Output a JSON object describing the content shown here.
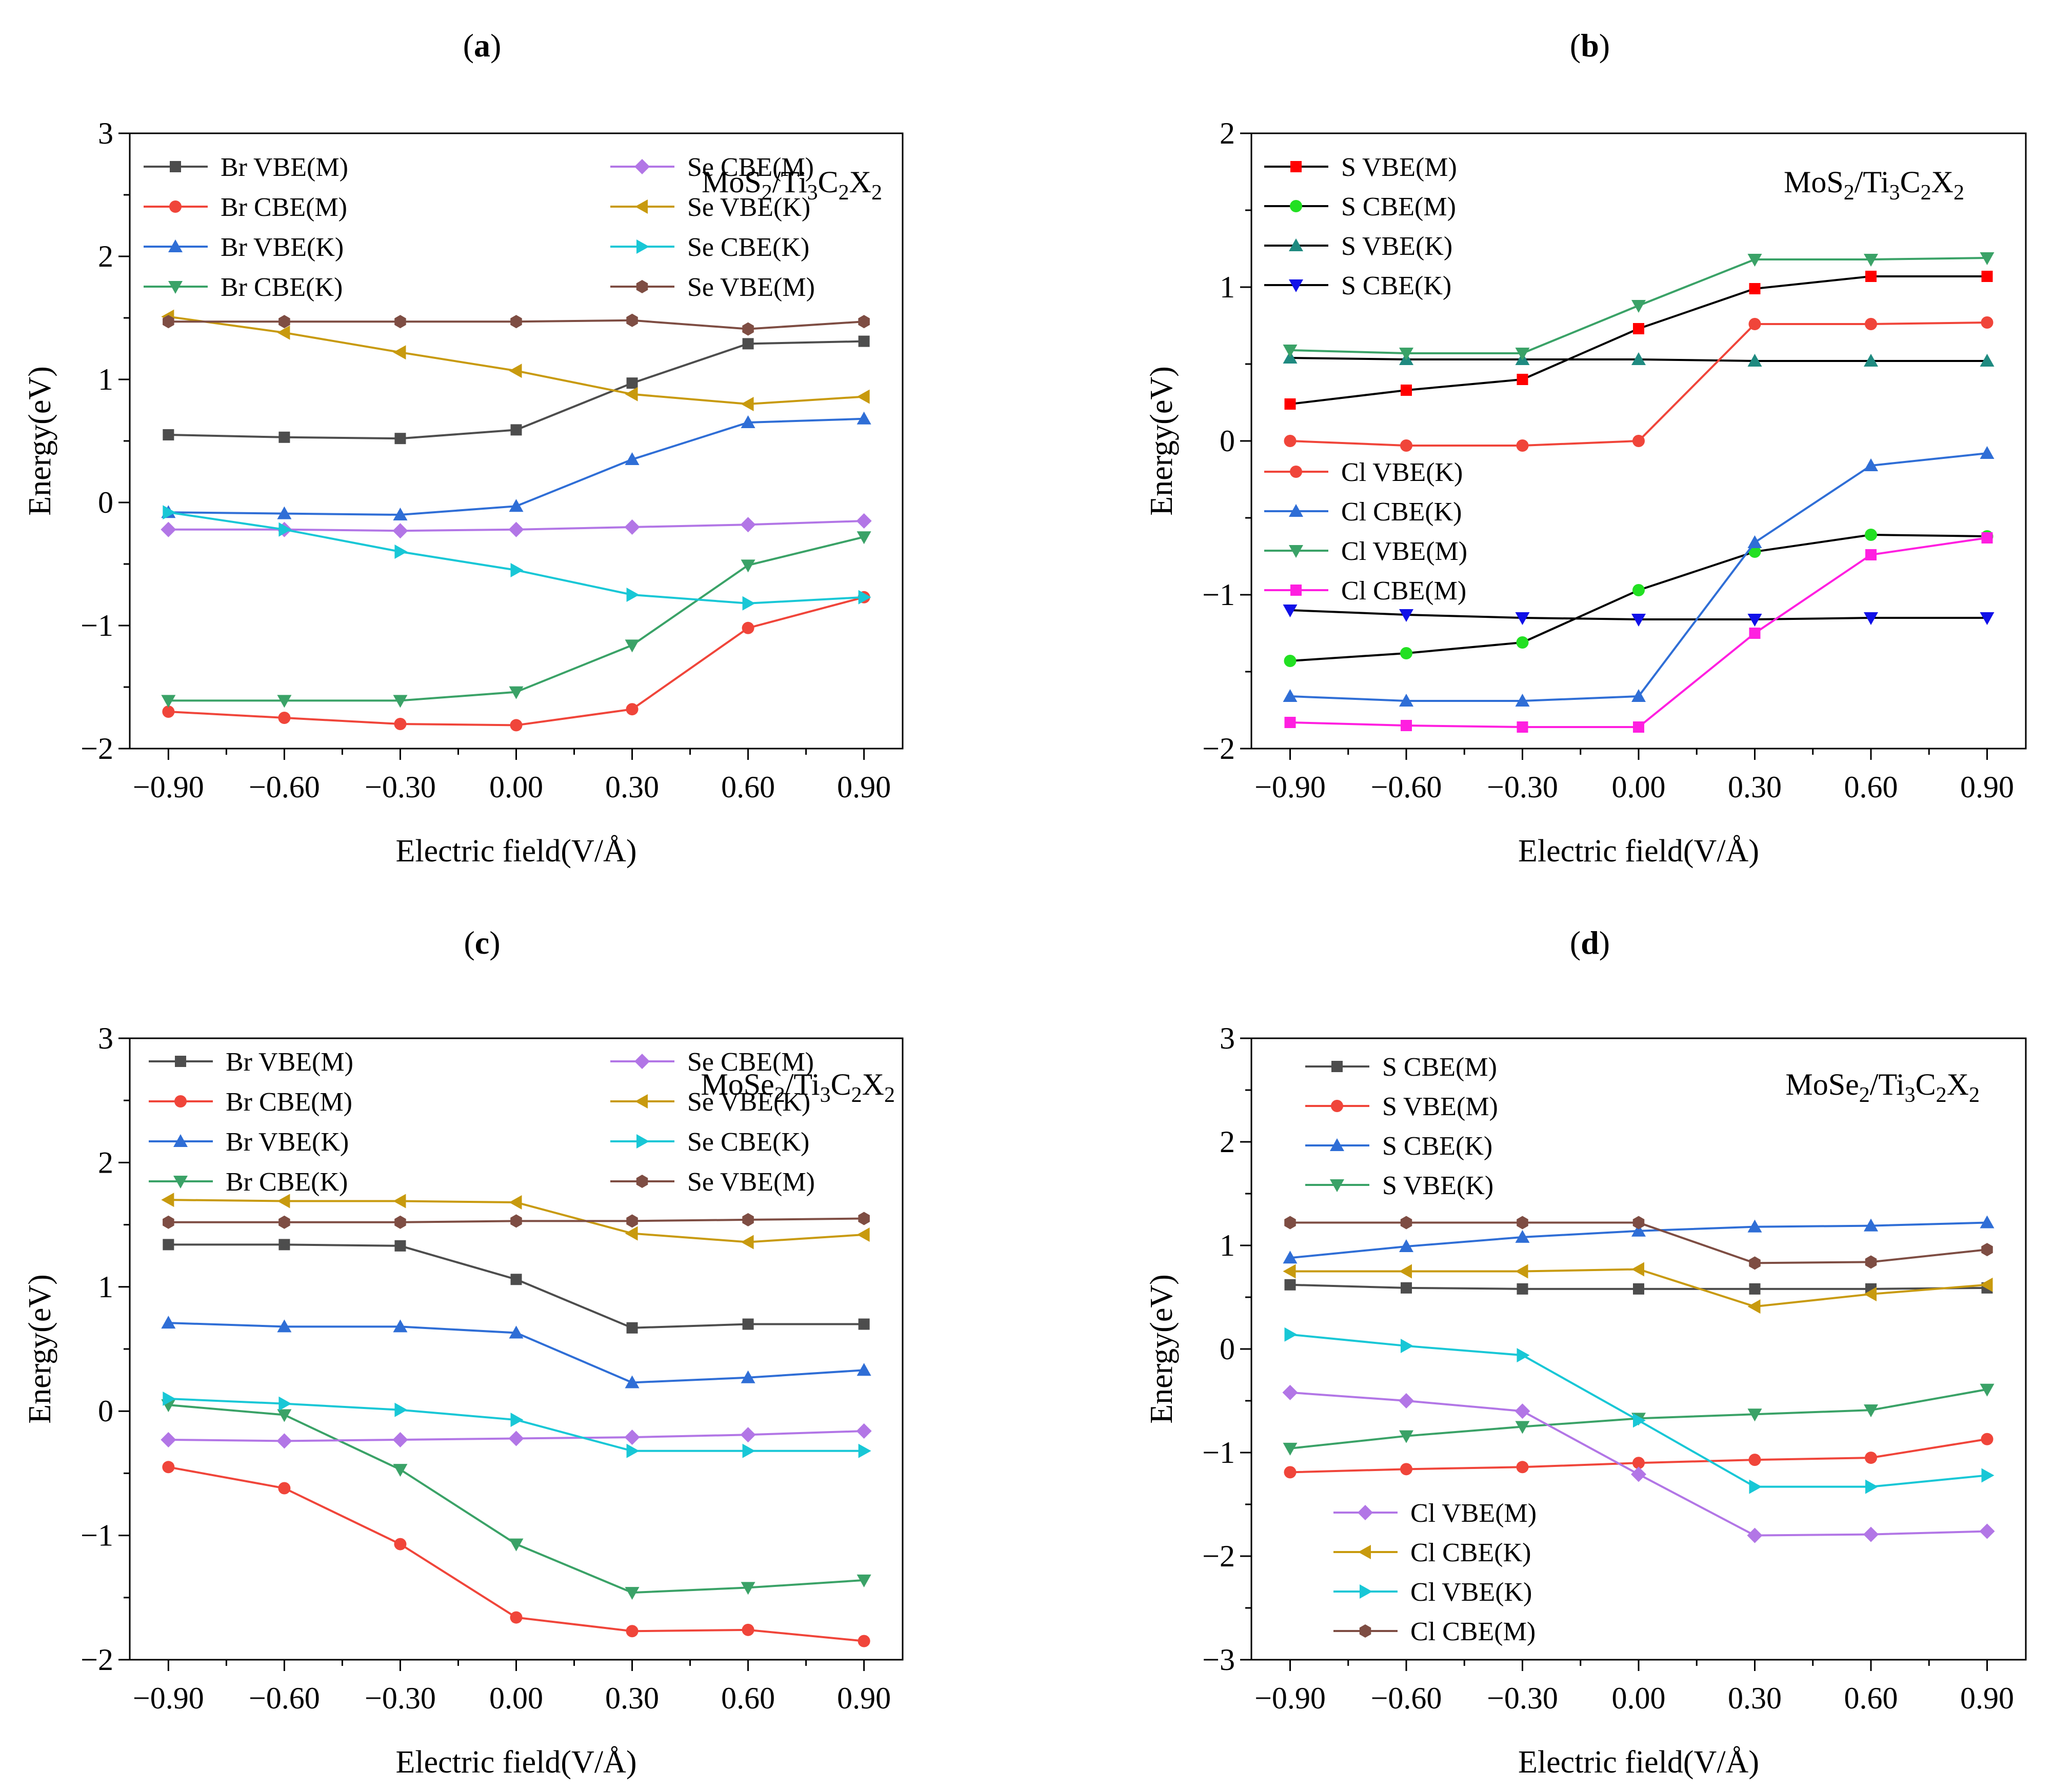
{
  "figure": {
    "panels": [
      {
        "label": "a",
        "title_open": "(",
        "title_close": ")"
      },
      {
        "label": "b",
        "title_open": "(",
        "title_close": ")"
      },
      {
        "label": "c",
        "title_open": "(",
        "title_close": ")"
      },
      {
        "label": "d",
        "title_open": "(",
        "title_close": ")"
      }
    ]
  },
  "chart_data": [
    {
      "type": "line",
      "panel": "a",
      "title": "(a)",
      "annotation": {
        "parts": [
          "MoS",
          "2",
          "/Ti",
          "3",
          "C",
          "2",
          "X",
          "2"
        ]
      },
      "xlabel": "Electric field(V/Å)",
      "ylabel": "Energy(eV)",
      "x": [
        -0.9,
        -0.6,
        -0.3,
        0.0,
        0.3,
        0.6,
        0.9
      ],
      "xtick_labels": [
        "−0.90",
        "−0.60",
        "−0.30",
        "0.00",
        "0.30",
        "0.60",
        "0.90"
      ],
      "ylim": [
        -2,
        3
      ],
      "yticks": [
        -2,
        -1,
        0,
        1,
        2,
        3
      ],
      "ytick_labels": [
        "−2",
        "−1",
        "0",
        "1",
        "2",
        "3"
      ],
      "legend": {
        "position": "top-left",
        "columns": 2
      },
      "series": [
        {
          "name": "Br VBE(M)",
          "color": "#4d4d4d",
          "marker": "square",
          "values": [
            0.55,
            0.53,
            0.52,
            0.59,
            0.97,
            1.29,
            1.31
          ]
        },
        {
          "name": "Br CBE(M)",
          "color": "#f0453a",
          "marker": "circle",
          "values": [
            -1.7,
            -1.75,
            -1.8,
            -1.81,
            -1.68,
            -1.02,
            -0.77
          ]
        },
        {
          "name": "Br VBE(K)",
          "color": "#2f6ed6",
          "marker": "triangle-up",
          "values": [
            -0.08,
            -0.09,
            -0.1,
            -0.03,
            0.35,
            0.65,
            0.68
          ]
        },
        {
          "name": "Br CBE(K)",
          "color": "#3aa267",
          "marker": "triangle-down",
          "values": [
            -1.61,
            -1.61,
            -1.61,
            -1.54,
            -1.16,
            -0.51,
            -0.28
          ]
        },
        {
          "name": "Se CBE(M)",
          "color": "#b276e6",
          "marker": "diamond",
          "values": [
            -0.22,
            -0.22,
            -0.23,
            -0.22,
            -0.2,
            -0.18,
            -0.15
          ]
        },
        {
          "name": "Se VBE(K)",
          "color": "#c89a0e",
          "marker": "triangle-left",
          "values": [
            1.51,
            1.38,
            1.22,
            1.07,
            0.88,
            0.8,
            0.86
          ]
        },
        {
          "name": "Se CBE(K)",
          "color": "#18c7d6",
          "marker": "triangle-right",
          "values": [
            -0.08,
            -0.22,
            -0.4,
            -0.55,
            -0.75,
            -0.82,
            -0.77
          ]
        },
        {
          "name": "Se VBE(M)",
          "color": "#7e4d43",
          "marker": "hexagon",
          "values": [
            1.47,
            1.47,
            1.47,
            1.47,
            1.48,
            1.41,
            1.47
          ]
        }
      ]
    },
    {
      "type": "line",
      "panel": "b",
      "title": "(b)",
      "annotation": {
        "parts": [
          "MoS",
          "2",
          "/Ti",
          "3",
          "C",
          "2",
          "X",
          "2"
        ]
      },
      "xlabel": "Electric field(V/Å)",
      "ylabel": "Energy(eV)",
      "x": [
        -0.9,
        -0.6,
        -0.3,
        0.0,
        0.3,
        0.6,
        0.9
      ],
      "xtick_labels": [
        "−0.90",
        "−0.60",
        "−0.30",
        "0.00",
        "0.30",
        "0.60",
        "0.90"
      ],
      "ylim": [
        -2,
        2
      ],
      "yticks": [
        -2,
        -1,
        0,
        1,
        2
      ],
      "ytick_labels": [
        "−2",
        "−1",
        "0",
        "1",
        "2"
      ],
      "legend": {
        "position": "top-left and middle-left",
        "columns": 1
      },
      "series": [
        {
          "name": "S VBE(M)",
          "color": "#000000",
          "marker": "square",
          "marker_color": "#ff0000",
          "values": [
            0.24,
            0.33,
            0.4,
            0.73,
            0.99,
            1.07,
            1.07
          ]
        },
        {
          "name": "S CBE(M)",
          "color": "#000000",
          "marker": "circle",
          "marker_color": "#22e022",
          "values": [
            -1.43,
            -1.38,
            -1.31,
            -0.97,
            -0.72,
            -0.61,
            -0.62
          ]
        },
        {
          "name": "S VBE(K)",
          "color": "#000000",
          "marker": "triangle-up",
          "marker_color": "#1f8a80",
          "values": [
            0.54,
            0.53,
            0.53,
            0.53,
            0.52,
            0.52,
            0.52
          ]
        },
        {
          "name": "S CBE(K)",
          "color": "#000000",
          "marker": "triangle-down",
          "marker_color": "#1010e8",
          "values": [
            -1.1,
            -1.13,
            -1.15,
            -1.16,
            -1.16,
            -1.15,
            -1.15
          ]
        },
        {
          "name": "Cl VBE(K)",
          "color": "#f0453a",
          "marker": "circle",
          "values": [
            0.0,
            -0.03,
            -0.03,
            0.0,
            0.76,
            0.76,
            0.77
          ]
        },
        {
          "name": "Cl CBE(K)",
          "color": "#2f6ed6",
          "marker": "triangle-up",
          "values": [
            -1.66,
            -1.69,
            -1.69,
            -1.66,
            -0.66,
            -0.16,
            -0.08
          ]
        },
        {
          "name": "Cl VBE(M)",
          "color": "#3aa267",
          "marker": "triangle-down",
          "values": [
            0.59,
            0.57,
            0.57,
            0.88,
            1.18,
            1.18,
            1.19
          ]
        },
        {
          "name": "Cl CBE(M)",
          "color": "#ff1fe0",
          "marker": "square",
          "values": [
            -1.83,
            -1.85,
            -1.86,
            -1.86,
            -1.25,
            -0.74,
            -0.63
          ]
        }
      ]
    },
    {
      "type": "line",
      "panel": "c",
      "title": "(c)",
      "annotation": {
        "parts": [
          "MoSe",
          "2",
          "/Ti",
          "3",
          "C",
          "2",
          "X",
          "2"
        ]
      },
      "xlabel": "Electric field(V/Å)",
      "ylabel": "Energy(eV)",
      "x": [
        -0.9,
        -0.6,
        -0.3,
        0.0,
        0.3,
        0.6,
        0.9
      ],
      "xtick_labels": [
        "−0.90",
        "−0.60",
        "−0.30",
        "0.00",
        "0.30",
        "0.60",
        "0.90"
      ],
      "ylim": [
        -2,
        3
      ],
      "yticks": [
        -2,
        -1,
        0,
        1,
        2,
        3
      ],
      "ytick_labels": [
        "−2",
        "−1",
        "0",
        "1",
        "2",
        "3"
      ],
      "legend": {
        "position": "top-left",
        "columns": 2
      },
      "series": [
        {
          "name": "Br VBE(M)",
          "color": "#4d4d4d",
          "marker": "square",
          "values": [
            1.34,
            1.34,
            1.33,
            1.06,
            0.67,
            0.7,
            0.7
          ]
        },
        {
          "name": "Br CBE(M)",
          "color": "#f0453a",
          "marker": "circle",
          "values": [
            -0.45,
            -0.62,
            -1.07,
            -1.66,
            -1.77,
            -1.76,
            -1.85
          ]
        },
        {
          "name": "Br VBE(K)",
          "color": "#2f6ed6",
          "marker": "triangle-up",
          "values": [
            0.71,
            0.68,
            0.68,
            0.63,
            0.23,
            0.27,
            0.33
          ]
        },
        {
          "name": "Br CBE(K)",
          "color": "#3aa267",
          "marker": "triangle-down",
          "values": [
            0.05,
            -0.03,
            -0.47,
            -1.07,
            -1.46,
            -1.42,
            -1.36
          ]
        },
        {
          "name": "Se CBE(M)",
          "color": "#b276e6",
          "marker": "diamond",
          "values": [
            -0.23,
            -0.24,
            -0.23,
            -0.22,
            -0.21,
            -0.19,
            -0.16
          ]
        },
        {
          "name": "Se VBE(K)",
          "color": "#c89a0e",
          "marker": "triangle-left",
          "values": [
            1.7,
            1.69,
            1.69,
            1.68,
            1.43,
            1.36,
            1.42
          ]
        },
        {
          "name": "Se CBE(K)",
          "color": "#18c7d6",
          "marker": "triangle-right",
          "values": [
            0.1,
            0.06,
            0.01,
            -0.07,
            -0.32,
            -0.32,
            -0.32
          ]
        },
        {
          "name": "Se VBE(M)",
          "color": "#7e4d43",
          "marker": "hexagon",
          "values": [
            1.52,
            1.52,
            1.52,
            1.53,
            1.53,
            1.54,
            1.55
          ]
        }
      ]
    },
    {
      "type": "line",
      "panel": "d",
      "title": "(d)",
      "annotation": {
        "parts": [
          "MoSe",
          "2",
          "/Ti",
          "3",
          "C",
          "2",
          "X",
          "2"
        ]
      },
      "xlabel": "Electric field(V/Å)",
      "ylabel": "Energy(eV)",
      "x": [
        -0.9,
        -0.6,
        -0.3,
        0.0,
        0.3,
        0.6,
        0.9
      ],
      "xtick_labels": [
        "−0.90",
        "−0.60",
        "−0.30",
        "0.00",
        "0.30",
        "0.60",
        "0.90"
      ],
      "ylim": [
        -3,
        3
      ],
      "yticks": [
        -3,
        -2,
        -1,
        0,
        1,
        2,
        3
      ],
      "ytick_labels": [
        "−3",
        "−2",
        "−1",
        "0",
        "1",
        "2",
        "3"
      ],
      "legend": {
        "position": "top-left and bottom-left",
        "columns": 1
      },
      "series": [
        {
          "name": "S CBE(M)",
          "color": "#4d4d4d",
          "marker": "square",
          "values": [
            0.62,
            0.59,
            0.58,
            0.58,
            0.58,
            0.58,
            0.59
          ]
        },
        {
          "name": "S VBE(M)",
          "color": "#f0453a",
          "marker": "circle",
          "values": [
            -1.19,
            -1.16,
            -1.14,
            -1.1,
            -1.07,
            -1.05,
            -0.87
          ]
        },
        {
          "name": "S CBE(K)",
          "color": "#2f6ed6",
          "marker": "triangle-up",
          "values": [
            0.88,
            0.99,
            1.08,
            1.14,
            1.18,
            1.19,
            1.22
          ]
        },
        {
          "name": "S VBE(K)",
          "color": "#3aa267",
          "marker": "triangle-down",
          "values": [
            -0.96,
            -0.84,
            -0.75,
            -0.67,
            -0.63,
            -0.59,
            -0.39
          ]
        },
        {
          "name": "Cl VBE(M)",
          "color": "#b276e6",
          "marker": "diamond",
          "values": [
            -0.42,
            -0.5,
            -0.6,
            -1.21,
            -1.8,
            -1.79,
            -1.76
          ]
        },
        {
          "name": "Cl CBE(K)",
          "color": "#c89a0e",
          "marker": "triangle-left",
          "values": [
            0.75,
            0.75,
            0.75,
            0.77,
            0.41,
            0.53,
            0.62
          ]
        },
        {
          "name": "Cl VBE(K)",
          "color": "#18c7d6",
          "marker": "triangle-right",
          "values": [
            0.14,
            0.03,
            -0.06,
            -0.69,
            -1.33,
            -1.33,
            -1.22
          ]
        },
        {
          "name": "Cl CBE(M)",
          "color": "#7e4d43",
          "marker": "hexagon",
          "values": [
            1.22,
            1.22,
            1.22,
            1.22,
            0.83,
            0.84,
            0.96
          ]
        }
      ]
    }
  ]
}
